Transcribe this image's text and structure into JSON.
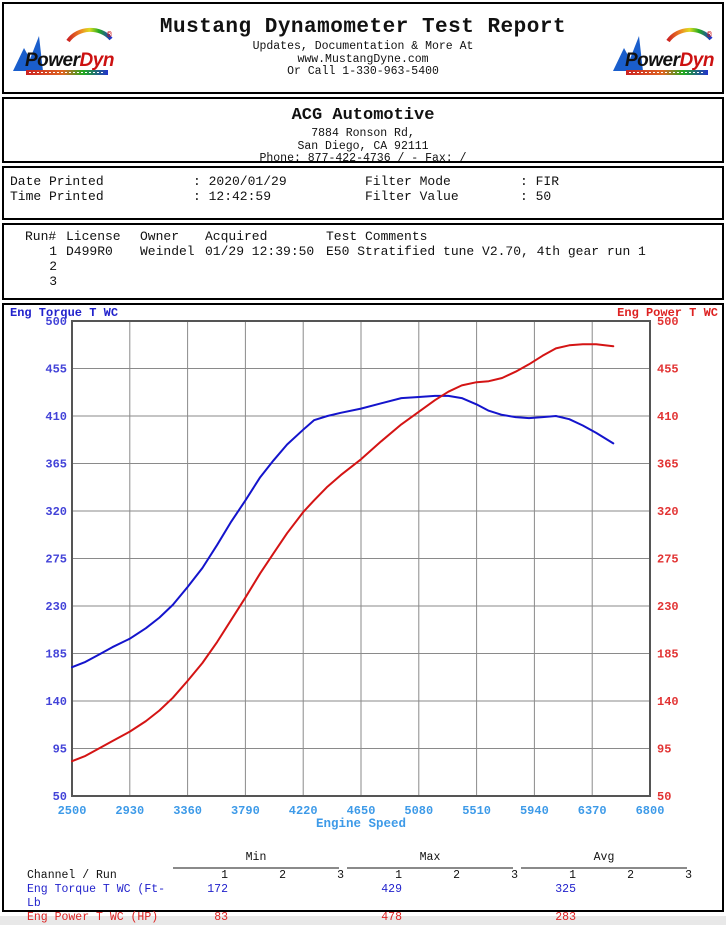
{
  "header": {
    "title": "Mustang Dynamometer Test Report",
    "subtitle_lines": [
      "Updates, Documentation & More At",
      "www.MustangDyne.com",
      "Or Call 1-330-963-5400"
    ],
    "logo": {
      "power": "Power",
      "dyne": "Dyne",
      "registered": "®"
    }
  },
  "shop": {
    "name": "ACG Automotive",
    "address_lines": [
      "7884 Ronson Rd,",
      "San Diego, CA  92111",
      "Phone: 877-422-4736 /  - Fax:  /"
    ]
  },
  "print_info": {
    "left_rows": [
      {
        "label": "Date Printed",
        "value": ": 2020/01/29"
      },
      {
        "label": "Time Printed",
        "value": ": 12:42:59"
      }
    ],
    "right_rows": [
      {
        "label": "Filter Mode",
        "value": ": FIR"
      },
      {
        "label": "Filter Value",
        "value": ": 50"
      }
    ]
  },
  "runs": {
    "headers": [
      "Run#",
      "License",
      "Owner",
      "Acquired",
      "Test Comments"
    ],
    "rows": [
      {
        "cells": [
          "1",
          "D499R0",
          "Weindel",
          "01/29 12:39:50",
          "E50 Stratified tune V2.70, 4th gear run 1"
        ]
      },
      {
        "cells": [
          "2",
          "",
          "",
          "",
          ""
        ]
      },
      {
        "cells": [
          "3",
          "",
          "",
          "",
          ""
        ]
      }
    ]
  },
  "chart_data": {
    "type": "line",
    "left_axis_label": "Eng Torque T WC",
    "right_axis_label": "Eng Power T WC",
    "xlabel": "Engine Speed",
    "xlim": [
      2500,
      6800
    ],
    "ylim": [
      50,
      500
    ],
    "x_ticks": [
      2500,
      2930,
      3360,
      3790,
      4220,
      4650,
      5080,
      5510,
      5940,
      6370,
      6800
    ],
    "y_ticks": [
      50,
      95,
      140,
      185,
      230,
      275,
      320,
      365,
      410,
      455,
      500
    ],
    "grid": true,
    "x": [
      2500,
      2600,
      2700,
      2800,
      2930,
      3050,
      3150,
      3250,
      3360,
      3470,
      3580,
      3680,
      3790,
      3900,
      4000,
      4100,
      4220,
      4300,
      4400,
      4500,
      4650,
      4800,
      4950,
      5080,
      5200,
      5300,
      5400,
      5510,
      5600,
      5700,
      5800,
      5900,
      6000,
      6100,
      6200,
      6300,
      6400,
      6527
    ],
    "series": [
      {
        "name": "Eng Torque T WC (Ft-Lb)",
        "axis": "left",
        "color": "#1414cc",
        "values": [
          172,
          177,
          184,
          191,
          199,
          209,
          219,
          231,
          248,
          266,
          288,
          309,
          330,
          352,
          368,
          383,
          397,
          406,
          410,
          413,
          417,
          422,
          427,
          428,
          429,
          429,
          427,
          421,
          415,
          411,
          409,
          408,
          409,
          410,
          407,
          401,
          394,
          384
        ]
      },
      {
        "name": "Eng Power T WC (HP)",
        "axis": "right",
        "color": "#d41414",
        "values": [
          83,
          88,
          95,
          102,
          111,
          121,
          131,
          143,
          159,
          176,
          196,
          216,
          238,
          261,
          280,
          299,
          319,
          330,
          343,
          354,
          369,
          386,
          402,
          414,
          425,
          433,
          439,
          442,
          443,
          446,
          452,
          459,
          467,
          474,
          477,
          478,
          478,
          476
        ]
      }
    ]
  },
  "summary": {
    "group_headers": [
      "Min",
      "Max",
      "Avg"
    ],
    "run_cols": [
      "1",
      "2",
      "3"
    ],
    "channel_label": "Channel / Run",
    "rows": [
      {
        "label": "Eng Torque T WC (Ft-Lb",
        "min": [
          "172",
          "",
          ""
        ],
        "max": [
          "429",
          "",
          ""
        ],
        "avg": [
          "325",
          "",
          ""
        ]
      },
      {
        "label": "Eng Power T WC (HP)",
        "min": [
          "83",
          "",
          ""
        ],
        "max": [
          "478",
          "",
          ""
        ],
        "avg": [
          "283",
          "",
          ""
        ]
      }
    ]
  },
  "colors": {
    "torque_blue": "#1414cc",
    "power_red": "#d41414",
    "left_tick": "#4343d8",
    "right_tick": "#e23333",
    "x_tick": "#3d9ae8",
    "grid": "#8a8a8a",
    "plot_border": "#555555"
  }
}
